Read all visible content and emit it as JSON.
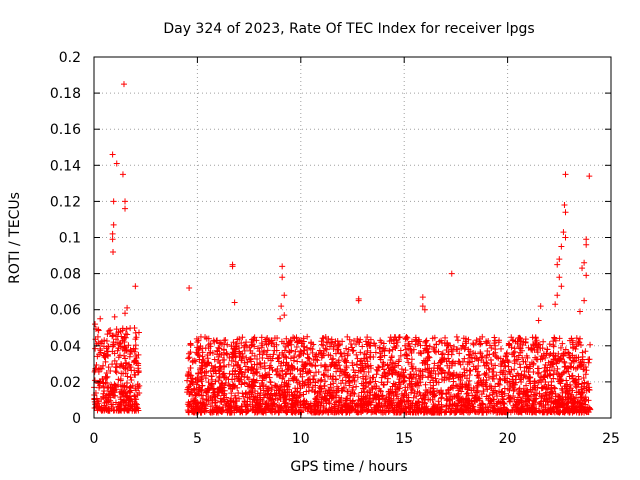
{
  "chart_data": {
    "type": "scatter",
    "title": "Day 324 of 2023, Rate Of TEC Index for receiver lpgs",
    "xlabel": "GPS time / hours",
    "ylabel": "ROTI / TECUs",
    "xlim": [
      0,
      25
    ],
    "ylim": [
      0,
      0.2
    ],
    "xticks": [
      0,
      5,
      10,
      15,
      20,
      25
    ],
    "xtick_labels": [
      "0",
      "5",
      "10",
      "15",
      "20",
      "25"
    ],
    "yticks": [
      0,
      0.02,
      0.04,
      0.06,
      0.08,
      0.1,
      0.12,
      0.14,
      0.16,
      0.18,
      0.2
    ],
    "ytick_labels": [
      "0",
      "0.02",
      "0.04",
      "0.06",
      "0.08",
      "0.1",
      "0.12",
      "0.14",
      "0.16",
      "0.18",
      "0.2"
    ],
    "grid": true,
    "marker": "+",
    "color": "#ff0000",
    "series": [
      {
        "name": "ROTI",
        "segments": [
          {
            "x_start": 0.0,
            "x_end": 2.2,
            "y_min": 0.004,
            "y_max": 0.05
          },
          {
            "x_start": 4.5,
            "x_end": 24.0,
            "y_min": 0.003,
            "y_max": 0.045
          }
        ],
        "outliers": [
          {
            "x": 0.05,
            "y": 0.052
          },
          {
            "x": 0.2,
            "y": 0.049
          },
          {
            "x": 0.3,
            "y": 0.055
          },
          {
            "x": 0.9,
            "y": 0.146
          },
          {
            "x": 1.1,
            "y": 0.141
          },
          {
            "x": 1.45,
            "y": 0.185
          },
          {
            "x": 1.4,
            "y": 0.135
          },
          {
            "x": 1.5,
            "y": 0.12
          },
          {
            "x": 1.5,
            "y": 0.116
          },
          {
            "x": 0.95,
            "y": 0.12
          },
          {
            "x": 0.95,
            "y": 0.107
          },
          {
            "x": 0.9,
            "y": 0.102
          },
          {
            "x": 0.9,
            "y": 0.099
          },
          {
            "x": 0.92,
            "y": 0.092
          },
          {
            "x": 2.0,
            "y": 0.073
          },
          {
            "x": 1.6,
            "y": 0.061
          },
          {
            "x": 1.5,
            "y": 0.058
          },
          {
            "x": 1.0,
            "y": 0.056
          },
          {
            "x": 4.6,
            "y": 0.072
          },
          {
            "x": 6.7,
            "y": 0.085
          },
          {
            "x": 6.7,
            "y": 0.084
          },
          {
            "x": 6.8,
            "y": 0.064
          },
          {
            "x": 9.1,
            "y": 0.084
          },
          {
            "x": 9.1,
            "y": 0.078
          },
          {
            "x": 9.2,
            "y": 0.068
          },
          {
            "x": 9.05,
            "y": 0.062
          },
          {
            "x": 9.2,
            "y": 0.057
          },
          {
            "x": 9.0,
            "y": 0.055
          },
          {
            "x": 12.8,
            "y": 0.066
          },
          {
            "x": 12.8,
            "y": 0.065
          },
          {
            "x": 17.3,
            "y": 0.08
          },
          {
            "x": 15.9,
            "y": 0.067
          },
          {
            "x": 15.9,
            "y": 0.062
          },
          {
            "x": 16.0,
            "y": 0.06
          },
          {
            "x": 22.8,
            "y": 0.135
          },
          {
            "x": 22.75,
            "y": 0.118
          },
          {
            "x": 22.8,
            "y": 0.114
          },
          {
            "x": 22.7,
            "y": 0.103
          },
          {
            "x": 22.8,
            "y": 0.1
          },
          {
            "x": 22.6,
            "y": 0.095
          },
          {
            "x": 22.5,
            "y": 0.088
          },
          {
            "x": 22.4,
            "y": 0.085
          },
          {
            "x": 22.5,
            "y": 0.078
          },
          {
            "x": 22.6,
            "y": 0.073
          },
          {
            "x": 22.4,
            "y": 0.068
          },
          {
            "x": 22.3,
            "y": 0.063
          },
          {
            "x": 23.8,
            "y": 0.099
          },
          {
            "x": 23.8,
            "y": 0.096
          },
          {
            "x": 23.95,
            "y": 0.134
          },
          {
            "x": 23.7,
            "y": 0.086
          },
          {
            "x": 23.6,
            "y": 0.083
          },
          {
            "x": 23.8,
            "y": 0.079
          },
          {
            "x": 23.7,
            "y": 0.065
          },
          {
            "x": 23.5,
            "y": 0.059
          },
          {
            "x": 21.6,
            "y": 0.062
          },
          {
            "x": 21.5,
            "y": 0.054
          }
        ]
      }
    ]
  }
}
